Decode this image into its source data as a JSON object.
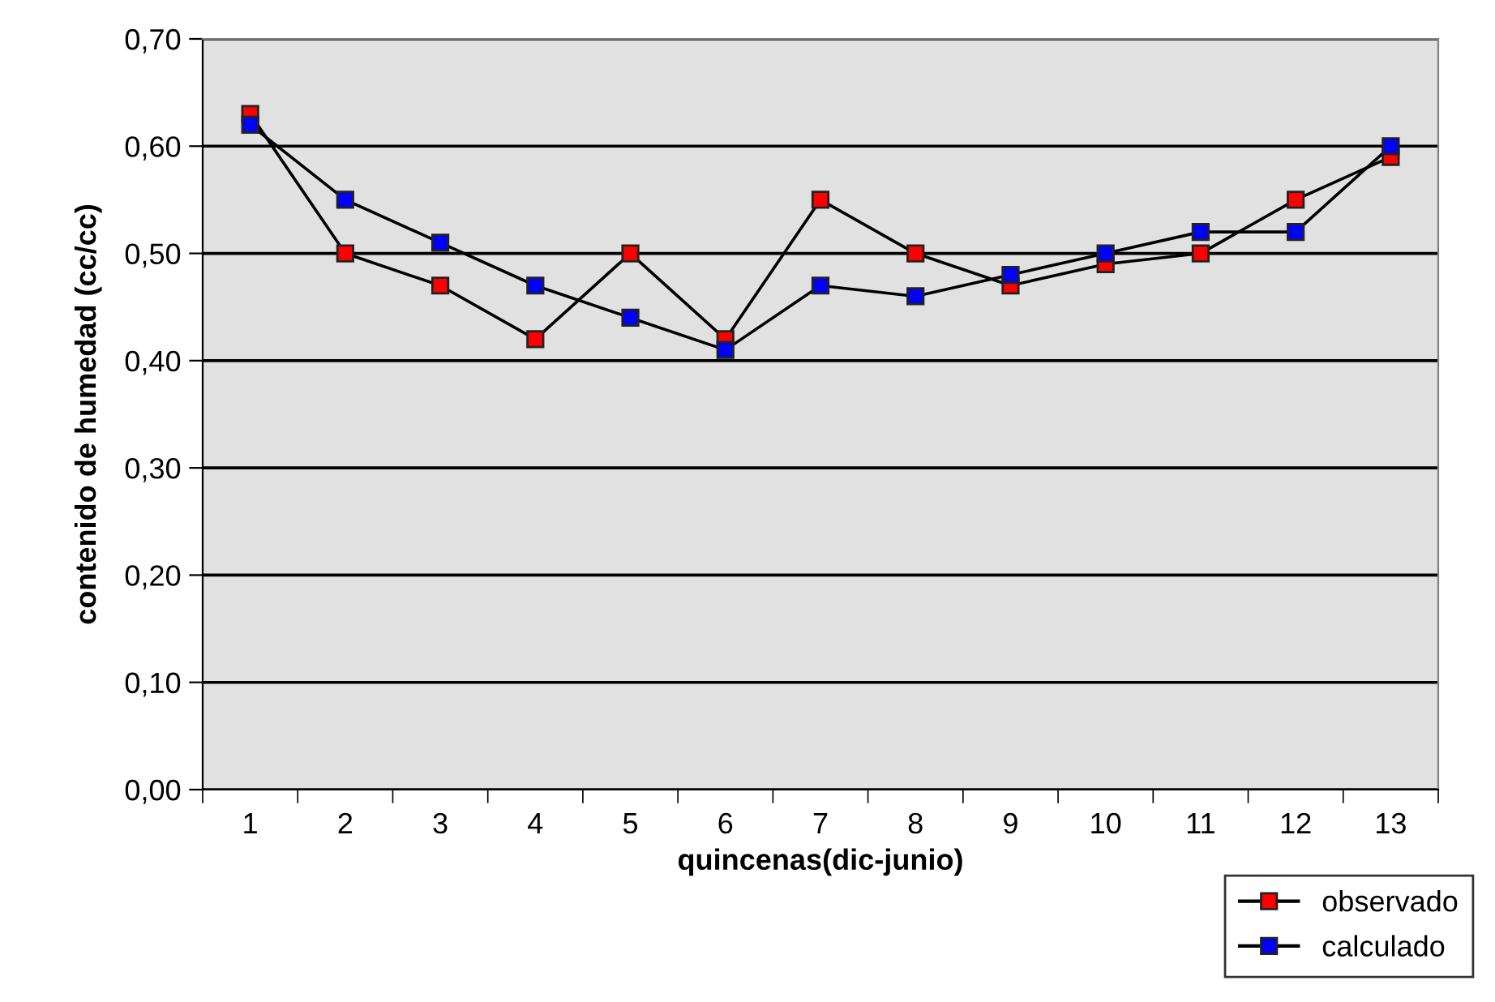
{
  "chart_data": {
    "type": "line",
    "xlabel": "quincenas(dic-junio)",
    "ylabel": "contenido de humedad (cc/cc)",
    "categories": [
      "1",
      "2",
      "3",
      "4",
      "5",
      "6",
      "7",
      "8",
      "9",
      "10",
      "11",
      "12",
      "13"
    ],
    "series": [
      {
        "name": "observado",
        "color": "#ff0000",
        "values": [
          0.63,
          0.5,
          0.47,
          0.42,
          0.5,
          0.42,
          0.55,
          0.5,
          0.47,
          0.49,
          0.5,
          0.55,
          0.59
        ]
      },
      {
        "name": "calculado",
        "color": "#0000ff",
        "values": [
          0.62,
          0.55,
          0.51,
          0.47,
          0.44,
          0.41,
          0.47,
          0.46,
          0.48,
          0.5,
          0.52,
          0.52,
          0.6
        ]
      }
    ],
    "ylim": [
      0,
      0.7
    ],
    "yticks": [
      {
        "value": 0,
        "label": "0,00"
      },
      {
        "value": 0.1,
        "label": "0,10"
      },
      {
        "value": 0.2,
        "label": "0,20"
      },
      {
        "value": 0.3,
        "label": "0,30"
      },
      {
        "value": 0.4,
        "label": "0,40"
      },
      {
        "value": 0.5,
        "label": "0,50"
      },
      {
        "value": 0.6,
        "label": "0,60"
      },
      {
        "value": 0.7,
        "label": "0,70"
      }
    ],
    "grid": "y",
    "legend": "bottom right",
    "marker": "square",
    "line_style": "solid"
  }
}
